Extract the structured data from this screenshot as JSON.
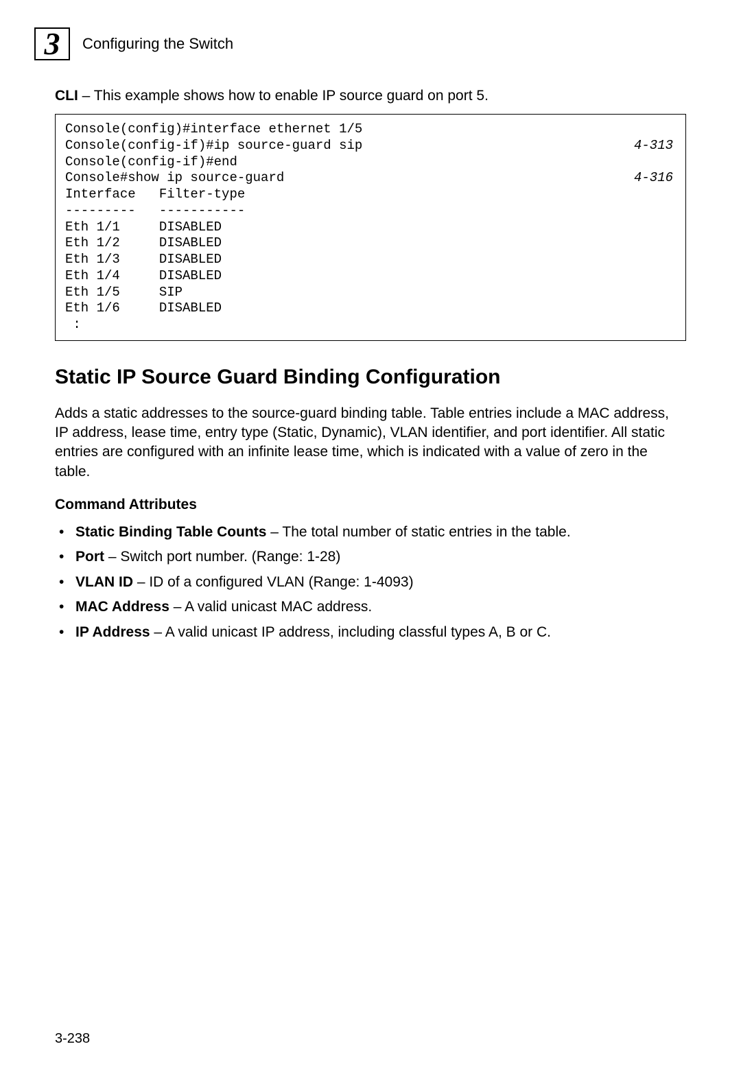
{
  "header": {
    "chapter_number": "3",
    "chapter_title": "Configuring the Switch"
  },
  "intro": {
    "prefix_bold": "CLI",
    "rest": " – This example shows how to enable IP source guard on port 5."
  },
  "cli": {
    "lines": [
      {
        "text": "Console(config)#interface ethernet 1/5",
        "ref": ""
      },
      {
        "text": "Console(config-if)#ip source-guard sip",
        "ref": "4-313"
      },
      {
        "text": "Console(config-if)#end",
        "ref": ""
      },
      {
        "text": "Console#show ip source-guard",
        "ref": "4-316"
      },
      {
        "text": "Interface   Filter-type",
        "ref": ""
      },
      {
        "text": "---------   -----------",
        "ref": ""
      },
      {
        "text": "Eth 1/1     DISABLED",
        "ref": ""
      },
      {
        "text": "Eth 1/2     DISABLED",
        "ref": ""
      },
      {
        "text": "Eth 1/3     DISABLED",
        "ref": ""
      },
      {
        "text": "Eth 1/4     DISABLED",
        "ref": ""
      },
      {
        "text": "Eth 1/5     SIP",
        "ref": ""
      },
      {
        "text": "Eth 1/6     DISABLED",
        "ref": ""
      },
      {
        "text": " :",
        "ref": ""
      }
    ]
  },
  "section": {
    "heading": "Static IP Source Guard Binding Configuration",
    "paragraph": "Adds a static addresses to the source-guard binding table. Table entries include a MAC address, IP address, lease time, entry type (Static, Dynamic), VLAN identifier, and port identifier. All static entries are configured with an infinite lease time, which is indicated with a value of zero in the table.",
    "subheading": "Command Attributes",
    "attributes": [
      {
        "term": "Static Binding Table Counts",
        "desc": " – The total number of static entries in the table."
      },
      {
        "term": "Port",
        "desc": " – Switch port number. (Range: 1-28)"
      },
      {
        "term": "VLAN ID",
        "desc": " – ID of a configured VLAN (Range: 1-4093)"
      },
      {
        "term": "MAC Address",
        "desc": " – A valid unicast MAC address."
      },
      {
        "term": "IP Address",
        "desc": " – A valid unicast IP address, including classful types A, B or C."
      }
    ]
  },
  "footer": {
    "page_number": "3-238"
  }
}
